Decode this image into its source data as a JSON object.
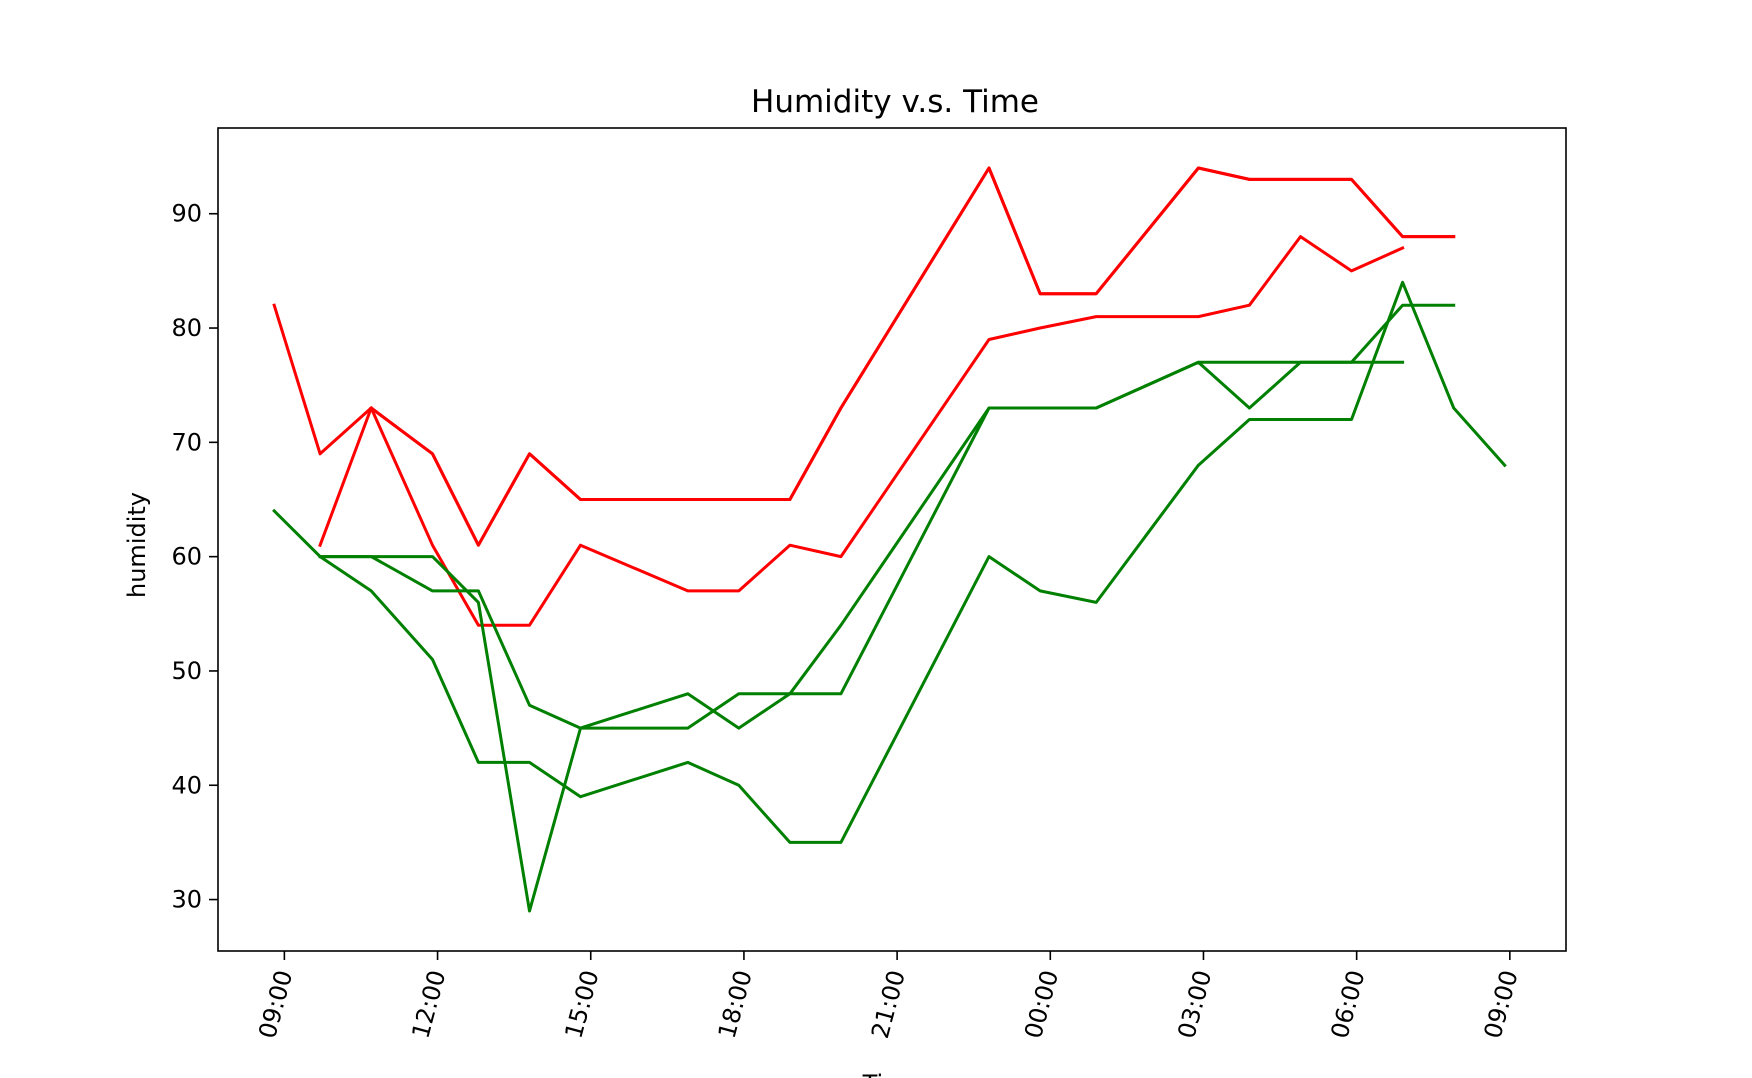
{
  "chart_data": {
    "type": "line",
    "title": "Humidity v.s. Time",
    "xlabel": "Time",
    "ylabel": "humidity",
    "x_ticks": [
      "09:00",
      "12:00",
      "15:00",
      "18:00",
      "21:00",
      "00:00",
      "03:00",
      "06:00",
      "09:00"
    ],
    "x_tick_hours": [
      9,
      12,
      15,
      18,
      21,
      24,
      27,
      30,
      33
    ],
    "x_unit": "hours (time of day, continuing past midnight)",
    "xlim": [
      7.7,
      34.1
    ],
    "y_ticks": [
      30,
      40,
      50,
      60,
      70,
      80,
      90
    ],
    "ylim": [
      25.5,
      97.5
    ],
    "grid": false,
    "legend": "none",
    "series": [
      {
        "color": "#ff0000",
        "x": [
          8.8,
          9.7,
          10.7,
          11.9,
          12.8,
          13.8,
          14.8,
          16.9,
          17.9,
          18.9,
          19.9,
          22.8,
          23.8,
          24.9,
          26.9,
          27.9,
          29.9,
          30.9,
          31.9
        ],
        "values": [
          82,
          69,
          73,
          69,
          61,
          69,
          65,
          65,
          65,
          65,
          73,
          94,
          83,
          83,
          94,
          93,
          93,
          88,
          88
        ]
      },
      {
        "color": "#ff0000",
        "x": [
          9.7,
          10.7,
          11.9,
          12.8,
          13.8,
          14.8,
          16.9,
          17.9,
          18.9,
          19.9,
          22.8,
          23.8,
          24.9,
          26.9,
          27.9,
          29.9,
          30.9,
          31.9
        ],
        "values": [
          61,
          73,
          69,
          61,
          69,
          65,
          65,
          65,
          65,
          73,
          94,
          83,
          83,
          94,
          93,
          93,
          88,
          88
        ]
      },
      {
        "color": "#ff0000",
        "x": [
          10.7,
          11.9,
          12.8,
          13.8,
          14.8,
          16.9,
          17.9,
          18.9,
          19.9,
          22.8,
          23.8,
          24.9,
          26.9,
          27.9,
          28.9,
          29.9,
          30.9
        ],
        "values": [
          73,
          61,
          54,
          54,
          61,
          57,
          57,
          61,
          60,
          79,
          80,
          81,
          81,
          82,
          88,
          85,
          87
        ]
      },
      {
        "color": "#008000",
        "x": [
          8.8,
          9.7,
          10.7,
          11.9,
          12.8,
          13.8,
          14.8,
          16.9,
          17.9,
          18.9,
          19.9,
          22.8,
          23.8,
          24.9,
          26.9,
          27.9,
          28.9,
          29.9,
          30.9,
          31.9,
          32.9
        ],
        "values": [
          64,
          60,
          57,
          51,
          42,
          42,
          39,
          42,
          40,
          35,
          35,
          60,
          57,
          56,
          68,
          72,
          72,
          72,
          84,
          73,
          68
        ]
      },
      {
        "color": "#008000",
        "x": [
          9.7,
          10.7,
          11.9,
          12.8,
          13.8,
          14.8,
          16.9,
          17.9,
          18.9,
          19.9,
          22.8,
          23.8,
          24.9,
          26.9,
          27.9,
          28.9,
          29.9,
          30.9,
          31.9
        ],
        "values": [
          60,
          60,
          60,
          56,
          29,
          45,
          45,
          48,
          48,
          48,
          73,
          73,
          73,
          77,
          77,
          77,
          77,
          82,
          82
        ]
      },
      {
        "color": "#008000",
        "x": [
          9.7,
          10.7,
          11.9,
          12.8,
          13.8,
          14.8,
          16.9,
          17.9,
          18.9,
          19.9,
          22.8,
          23.8,
          24.9,
          26.9,
          27.9,
          28.9,
          29.9,
          30.9
        ],
        "values": [
          60,
          60,
          57,
          57,
          47,
          45,
          48,
          45,
          48,
          54,
          73,
          73,
          73,
          77,
          73,
          77,
          77,
          77
        ]
      }
    ]
  }
}
